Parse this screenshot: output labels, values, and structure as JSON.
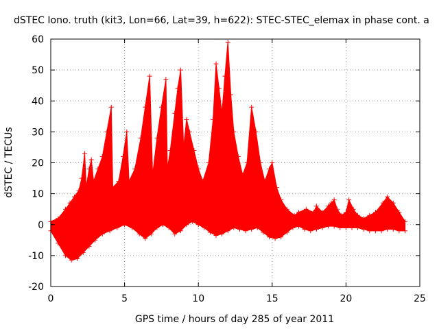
{
  "chart_data": {
    "type": "area",
    "title": "dSTEC Iono. truth (kit3, Lon=66, Lat=39, h=622): STEC-STEC_elemax in phase cont. a",
    "xlabel": "GPS time / hours of day 285 of year 2011",
    "ylabel": "dSTEC  / TECUs",
    "xlim": [
      0,
      25
    ],
    "ylim": [
      -20,
      60
    ],
    "xticks": [
      0,
      5,
      10,
      15,
      20,
      25
    ],
    "yticks": [
      -20,
      -10,
      0,
      10,
      20,
      30,
      40,
      50,
      60
    ],
    "grid": true,
    "legend": "none",
    "series": [
      {
        "color": "#ff0000",
        "marker": "+",
        "upper": [
          [
            0.0,
            1
          ],
          [
            0.5,
            2
          ],
          [
            1.0,
            5
          ],
          [
            1.3,
            7
          ],
          [
            1.6,
            9
          ],
          [
            1.9,
            11
          ],
          [
            2.1,
            15
          ],
          [
            2.3,
            23
          ],
          [
            2.4,
            12
          ],
          [
            2.6,
            18
          ],
          [
            2.75,
            21
          ],
          [
            2.9,
            14
          ],
          [
            3.2,
            18
          ],
          [
            3.5,
            22
          ],
          [
            3.8,
            30
          ],
          [
            4.1,
            38
          ],
          [
            4.2,
            12
          ],
          [
            4.6,
            14
          ],
          [
            4.9,
            22
          ],
          [
            5.15,
            30
          ],
          [
            5.3,
            14
          ],
          [
            5.7,
            18
          ],
          [
            6.1,
            28
          ],
          [
            6.4,
            38
          ],
          [
            6.7,
            48
          ],
          [
            6.9,
            16
          ],
          [
            7.2,
            28
          ],
          [
            7.5,
            38
          ],
          [
            7.8,
            47
          ],
          [
            7.9,
            18
          ],
          [
            8.1,
            24
          ],
          [
            8.4,
            36
          ],
          [
            8.6,
            44
          ],
          [
            8.8,
            50
          ],
          [
            9.0,
            25
          ],
          [
            9.2,
            34
          ],
          [
            9.4,
            30
          ],
          [
            9.7,
            24
          ],
          [
            10.0,
            18
          ],
          [
            10.3,
            14
          ],
          [
            10.7,
            20
          ],
          [
            11.0,
            34
          ],
          [
            11.2,
            52
          ],
          [
            11.4,
            44
          ],
          [
            11.6,
            36
          ],
          [
            11.8,
            48
          ],
          [
            12.0,
            59
          ],
          [
            12.2,
            42
          ],
          [
            12.4,
            30
          ],
          [
            12.7,
            22
          ],
          [
            13.0,
            16
          ],
          [
            13.3,
            20
          ],
          [
            13.6,
            38
          ],
          [
            13.9,
            30
          ],
          [
            14.2,
            20
          ],
          [
            14.5,
            14
          ],
          [
            14.8,
            18
          ],
          [
            15.0,
            20
          ],
          [
            15.3,
            12
          ],
          [
            15.6,
            8
          ],
          [
            16.0,
            5
          ],
          [
            16.5,
            3
          ],
          [
            16.8,
            4
          ],
          [
            17.3,
            5
          ],
          [
            17.8,
            4
          ],
          [
            18.0,
            6
          ],
          [
            18.4,
            4
          ],
          [
            18.8,
            6
          ],
          [
            19.0,
            7
          ],
          [
            19.2,
            8
          ],
          [
            19.4,
            5
          ],
          [
            19.7,
            3
          ],
          [
            20.0,
            4
          ],
          [
            20.2,
            8
          ],
          [
            20.5,
            5
          ],
          [
            20.8,
            3
          ],
          [
            21.2,
            2
          ],
          [
            21.6,
            3
          ],
          [
            22.0,
            4
          ],
          [
            22.5,
            7
          ],
          [
            22.8,
            9
          ],
          [
            23.2,
            7
          ],
          [
            23.6,
            4
          ],
          [
            24.0,
            1
          ]
        ],
        "lower": [
          [
            0.0,
            -2
          ],
          [
            0.5,
            -6
          ],
          [
            1.0,
            -10
          ],
          [
            1.4,
            -11.5
          ],
          [
            1.8,
            -11
          ],
          [
            2.2,
            -9
          ],
          [
            2.6,
            -7
          ],
          [
            3.0,
            -5
          ],
          [
            3.5,
            -3
          ],
          [
            4.0,
            -2
          ],
          [
            4.5,
            -1
          ],
          [
            5.0,
            0
          ],
          [
            5.5,
            -1
          ],
          [
            6.0,
            -3
          ],
          [
            6.4,
            -4.5
          ],
          [
            6.8,
            -3
          ],
          [
            7.2,
            -1
          ],
          [
            7.6,
            0
          ],
          [
            8.0,
            -1
          ],
          [
            8.4,
            -3
          ],
          [
            8.8,
            -2
          ],
          [
            9.2,
            0
          ],
          [
            9.6,
            1
          ],
          [
            10.0,
            0
          ],
          [
            10.4,
            -1
          ],
          [
            10.8,
            -2.5
          ],
          [
            11.2,
            -3.5
          ],
          [
            11.6,
            -3
          ],
          [
            12.0,
            -2
          ],
          [
            12.4,
            -1
          ],
          [
            12.8,
            -1.5
          ],
          [
            13.2,
            -2
          ],
          [
            13.6,
            -1.5
          ],
          [
            14.0,
            -1
          ],
          [
            14.4,
            -2.5
          ],
          [
            14.8,
            -4
          ],
          [
            15.2,
            -4.5
          ],
          [
            15.6,
            -4
          ],
          [
            16.0,
            -2.5
          ],
          [
            16.4,
            -1
          ],
          [
            16.8,
            -0.5
          ],
          [
            17.2,
            -1.5
          ],
          [
            17.6,
            -2
          ],
          [
            18.0,
            -1.5
          ],
          [
            18.4,
            -1
          ],
          [
            18.8,
            -0.5
          ],
          [
            19.2,
            -0.5
          ],
          [
            19.6,
            -1
          ],
          [
            20.0,
            -1
          ],
          [
            20.4,
            -1
          ],
          [
            20.8,
            -1
          ],
          [
            21.2,
            -1.5
          ],
          [
            21.6,
            -2
          ],
          [
            22.0,
            -2
          ],
          [
            22.4,
            -2
          ],
          [
            22.8,
            -1.5
          ],
          [
            23.2,
            -1.5
          ],
          [
            23.6,
            -2
          ],
          [
            24.0,
            -2
          ]
        ]
      }
    ]
  }
}
